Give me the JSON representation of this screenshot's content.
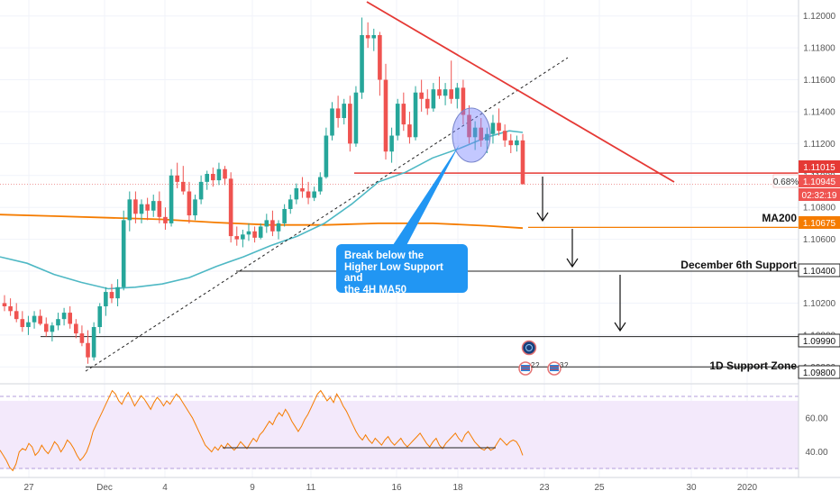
{
  "chart_data": {
    "type": "candlestick",
    "price_axis": {
      "range": [
        1.097,
        1.121
      ],
      "ticks": [
        "1.12000",
        "1.11800",
        "1.11600",
        "1.11400",
        "1.11200",
        "1.11000",
        "1.10800",
        "1.10600",
        "1.10400",
        "1.10200",
        "1.10000",
        "1.09800"
      ]
    },
    "time_axis": {
      "labels": [
        "27",
        "Dec",
        "4",
        "9",
        "11",
        "16",
        "18",
        "23",
        "25",
        "30",
        "2020"
      ]
    },
    "price_tags": {
      "resistance": "1.11015",
      "last_price": "1.10945",
      "change": "0.68%",
      "countdown": "02:32:19",
      "ma200": "1.10675",
      "dec6": "1.10400",
      "low_a": "1.09990",
      "low_b": "1.09800"
    },
    "levels": {
      "resistance": 1.11015,
      "ma200": 1.10675,
      "dec6": 1.104,
      "low_a": 1.0999,
      "low_b": 1.098
    },
    "annotations": {
      "ma200_label": "MA200",
      "dec6_label": "December 6th Support",
      "support_label": "1D Support Zone",
      "callout": "Break below the\nHigher Low Support and\nthe 4H MA50"
    },
    "rsi": {
      "ticks": [
        "60.00",
        "40.00"
      ],
      "range": [
        25,
        80
      ],
      "band": [
        30,
        70
      ],
      "values": [
        41,
        38,
        35,
        31,
        29,
        33,
        40,
        42,
        41,
        45,
        43,
        38,
        40,
        44,
        41,
        39,
        42,
        46,
        44,
        40,
        43,
        47,
        45,
        42,
        38,
        35,
        37,
        40,
        45,
        52,
        56,
        60,
        64,
        68,
        72,
        76,
        74,
        70,
        68,
        72,
        75,
        71,
        67,
        70,
        73,
        71,
        68,
        65,
        69,
        72,
        70,
        67,
        70,
        68,
        71,
        74,
        72,
        69,
        66,
        63,
        60,
        56,
        52,
        48,
        44,
        42,
        40,
        43,
        41,
        44,
        42,
        45,
        43,
        41,
        43,
        46,
        44,
        42,
        45,
        48,
        46,
        50,
        52,
        55,
        58,
        56,
        60,
        63,
        61,
        65,
        62,
        58,
        55,
        52,
        55,
        59,
        62,
        66,
        70,
        74,
        76,
        73,
        70,
        72,
        69,
        74,
        71,
        67,
        64,
        60,
        56,
        52,
        49,
        47,
        50,
        47,
        45,
        48,
        46,
        44,
        47,
        49,
        46,
        44,
        46,
        48,
        45,
        43,
        45,
        47,
        49,
        51,
        48,
        45,
        43,
        46,
        48,
        44,
        42,
        45,
        47,
        49,
        51,
        48,
        46,
        50,
        52,
        49,
        46,
        44,
        42,
        41,
        43,
        41,
        42,
        45,
        48,
        46,
        44,
        46,
        47,
        46,
        43,
        38
      ],
      "trendline": [
        43,
        42
      ]
    },
    "colors": {
      "up": "#26a69a",
      "down": "#ef5350",
      "ma50": "#4eb8c4",
      "ma200": "#f57c00",
      "resistance": "#e53935",
      "rsi": "#f57c00",
      "rsi_band": "#f3e9fb"
    },
    "candles": [
      [
        1.102,
        1.1025,
        1.1015,
        1.1018
      ],
      [
        1.1018,
        1.1023,
        1.1012,
        1.1015
      ],
      [
        1.1015,
        1.102,
        1.1008,
        1.101
      ],
      [
        1.101,
        1.1015,
        1.1002,
        1.1005
      ],
      [
        1.1005,
        1.1012,
        1.1,
        1.1008
      ],
      [
        1.1008,
        1.1015,
        1.1004,
        1.1012
      ],
      [
        1.1012,
        1.1016,
        1.1006,
        1.1007
      ],
      [
        1.1007,
        1.1011,
        1.0999,
        1.1002
      ],
      [
        1.1002,
        1.1008,
        1.0996,
        1.1006
      ],
      [
        1.1006,
        1.1014,
        1.1003,
        1.101
      ],
      [
        1.101,
        1.1017,
        1.1006,
        1.1014
      ],
      [
        1.1014,
        1.1018,
        1.1004,
        1.1007
      ],
      [
        1.1007,
        1.101,
        1.0998,
        1.1001
      ],
      [
        1.1001,
        1.1006,
        1.0993,
        1.0995
      ],
      [
        1.0995,
        1.1003,
        1.0982,
        1.0986
      ],
      [
        1.0986,
        1.1008,
        1.0984,
        1.1005
      ],
      [
        1.1005,
        1.102,
        1.1001,
        1.1018
      ],
      [
        1.1018,
        1.103,
        1.1012,
        1.1027
      ],
      [
        1.1027,
        1.1032,
        1.102,
        1.1023
      ],
      [
        1.1023,
        1.1035,
        1.1018,
        1.103
      ],
      [
        1.103,
        1.1078,
        1.1028,
        1.1072
      ],
      [
        1.1072,
        1.109,
        1.1065,
        1.1085
      ],
      [
        1.1085,
        1.109,
        1.107,
        1.1076
      ],
      [
        1.1076,
        1.1085,
        1.107,
        1.1082
      ],
      [
        1.1082,
        1.1086,
        1.1072,
        1.1078
      ],
      [
        1.1078,
        1.1088,
        1.1074,
        1.1084
      ],
      [
        1.1084,
        1.109,
        1.107,
        1.1074
      ],
      [
        1.1074,
        1.108,
        1.1066,
        1.107
      ],
      [
        1.107,
        1.1104,
        1.1068,
        1.11
      ],
      [
        1.11,
        1.1108,
        1.1092,
        1.1096
      ],
      [
        1.1096,
        1.1106,
        1.1088,
        1.109
      ],
      [
        1.109,
        1.1096,
        1.107,
        1.1075
      ],
      [
        1.1075,
        1.1088,
        1.1072,
        1.1085
      ],
      [
        1.1085,
        1.11,
        1.1082,
        1.1096
      ],
      [
        1.1096,
        1.1103,
        1.1091,
        1.1101
      ],
      [
        1.1101,
        1.1105,
        1.1093,
        1.1097
      ],
      [
        1.1097,
        1.1108,
        1.1094,
        1.1104
      ],
      [
        1.1104,
        1.1106,
        1.1094,
        1.1098
      ],
      [
        1.1098,
        1.1102,
        1.1058,
        1.1062
      ],
      [
        1.1062,
        1.1068,
        1.1056,
        1.106
      ],
      [
        1.106,
        1.1066,
        1.1055,
        1.1063
      ],
      [
        1.1063,
        1.107,
        1.1059,
        1.1065
      ],
      [
        1.1065,
        1.1068,
        1.1058,
        1.1061
      ],
      [
        1.1061,
        1.107,
        1.106,
        1.1068
      ],
      [
        1.1068,
        1.1076,
        1.1064,
        1.1072
      ],
      [
        1.1072,
        1.1078,
        1.1062,
        1.1065
      ],
      [
        1.1065,
        1.1072,
        1.106,
        1.107
      ],
      [
        1.107,
        1.1082,
        1.1068,
        1.1079
      ],
      [
        1.1079,
        1.1088,
        1.1076,
        1.1085
      ],
      [
        1.1085,
        1.1095,
        1.1082,
        1.1092
      ],
      [
        1.1092,
        1.1099,
        1.1086,
        1.109
      ],
      [
        1.109,
        1.1096,
        1.1082,
        1.1086
      ],
      [
        1.1086,
        1.1093,
        1.1084,
        1.109
      ],
      [
        1.109,
        1.1102,
        1.1088,
        1.1099
      ],
      [
        1.1099,
        1.113,
        1.1098,
        1.1125
      ],
      [
        1.1125,
        1.1146,
        1.1122,
        1.1142
      ],
      [
        1.1142,
        1.115,
        1.113,
        1.1136
      ],
      [
        1.1136,
        1.1148,
        1.1132,
        1.1145
      ],
      [
        1.1145,
        1.115,
        1.1115,
        1.112
      ],
      [
        1.112,
        1.1156,
        1.1118,
        1.1152
      ],
      [
        1.1152,
        1.1199,
        1.1148,
        1.1188
      ],
      [
        1.1188,
        1.1196,
        1.118,
        1.1186
      ],
      [
        1.1186,
        1.1192,
        1.1178,
        1.1188
      ],
      [
        1.1188,
        1.119,
        1.115,
        1.116
      ],
      [
        1.116,
        1.117,
        1.111,
        1.1115
      ],
      [
        1.1115,
        1.113,
        1.1108,
        1.1125
      ],
      [
        1.1125,
        1.1148,
        1.1122,
        1.1145
      ],
      [
        1.1145,
        1.1152,
        1.1128,
        1.1132
      ],
      [
        1.1132,
        1.114,
        1.112,
        1.1124
      ],
      [
        1.1124,
        1.1156,
        1.1122,
        1.1152
      ],
      [
        1.1152,
        1.116,
        1.114,
        1.1148
      ],
      [
        1.1148,
        1.1154,
        1.1138,
        1.1142
      ],
      [
        1.1142,
        1.1158,
        1.114,
        1.1154
      ],
      [
        1.1154,
        1.1162,
        1.1148,
        1.115
      ],
      [
        1.115,
        1.1158,
        1.1144,
        1.1154
      ],
      [
        1.1154,
        1.1172,
        1.1145,
        1.1148
      ],
      [
        1.1148,
        1.1158,
        1.1142,
        1.1155
      ],
      [
        1.1155,
        1.116,
        1.1132,
        1.1138
      ],
      [
        1.1138,
        1.1144,
        1.112,
        1.1124
      ],
      [
        1.1124,
        1.1134,
        1.1116,
        1.113
      ],
      [
        1.113,
        1.1136,
        1.1118,
        1.1122
      ],
      [
        1.1122,
        1.113,
        1.1114,
        1.1126
      ],
      [
        1.1126,
        1.1138,
        1.112,
        1.1133
      ],
      [
        1.1133,
        1.1142,
        1.1125,
        1.1128
      ],
      [
        1.1128,
        1.1132,
        1.1118,
        1.1122
      ],
      [
        1.1122,
        1.1126,
        1.1114,
        1.1119
      ],
      [
        1.1119,
        1.1125,
        1.1115,
        1.1122
      ],
      [
        1.1122,
        1.1126,
        1.1095,
        1.10945
      ]
    ],
    "ma50": [
      [
        0,
        1.1049
      ],
      [
        30,
        1.1045
      ],
      [
        60,
        1.1038
      ],
      [
        90,
        1.1033
      ],
      [
        120,
        1.1029
      ],
      [
        150,
        1.103
      ],
      [
        180,
        1.1032
      ],
      [
        210,
        1.1036
      ],
      [
        240,
        1.1043
      ],
      [
        270,
        1.1049
      ],
      [
        300,
        1.1056
      ],
      [
        330,
        1.1062
      ],
      [
        360,
        1.107
      ],
      [
        390,
        1.1082
      ],
      [
        420,
        1.1096
      ],
      [
        450,
        1.1102
      ],
      [
        480,
        1.1111
      ],
      [
        510,
        1.1117
      ],
      [
        540,
        1.1124
      ],
      [
        565,
        1.1128
      ],
      [
        580,
        1.1127
      ]
    ],
    "ma200": [
      [
        0,
        1.10755
      ],
      [
        60,
        1.10745
      ],
      [
        120,
        1.10735
      ],
      [
        180,
        1.10725
      ],
      [
        240,
        1.10705
      ],
      [
        300,
        1.1069
      ],
      [
        360,
        1.1069
      ],
      [
        420,
        1.107
      ],
      [
        480,
        1.107
      ],
      [
        540,
        1.10685
      ],
      [
        580,
        1.1067
      ]
    ],
    "events": {
      "first": "2",
      "second": "3"
    }
  }
}
